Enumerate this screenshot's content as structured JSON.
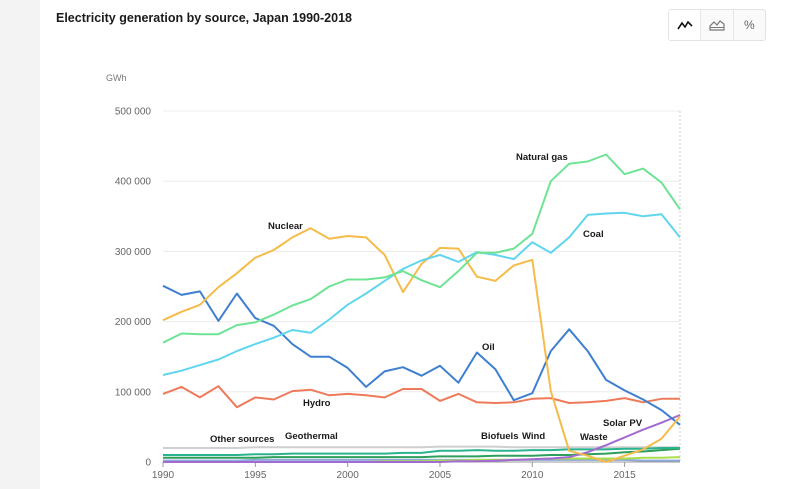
{
  "header": {
    "title": "Electricity generation by source, Japan 1990-2018"
  },
  "view_toggle": [
    {
      "name": "line-chart-icon",
      "glyph": "〰",
      "active": true
    },
    {
      "name": "area-chart-icon",
      "glyph": "⛰",
      "active": false
    },
    {
      "name": "percent-icon",
      "glyph": "%",
      "active": false
    }
  ],
  "chart_data": {
    "type": "line",
    "title": "Electricity generation by source, Japan 1990-2018",
    "ylabel": "GWh",
    "xlim": [
      1990,
      2018
    ],
    "ylim": [
      0,
      500000
    ],
    "x_ticks": [
      1990,
      1995,
      2000,
      2005,
      2010,
      2015
    ],
    "x_tick_labels": [
      "1990",
      "1995",
      "2000",
      "2005",
      "2010",
      "2015"
    ],
    "y_ticks": [
      0,
      100000,
      200000,
      300000,
      400000,
      500000
    ],
    "y_tick_labels": [
      "0",
      "100 000",
      "200 000",
      "300 000",
      "400 000",
      "500 000"
    ],
    "grid": true,
    "legend": "none",
    "x": [
      1990,
      1991,
      1992,
      1993,
      1994,
      1995,
      1996,
      1997,
      1998,
      1999,
      2000,
      2001,
      2002,
      2003,
      2004,
      2005,
      2006,
      2007,
      2008,
      2009,
      2010,
      2011,
      2012,
      2013,
      2014,
      2015,
      2016,
      2017,
      2018
    ],
    "series": [
      {
        "name": "Natural gas",
        "color": "#6fe394",
        "values": [
          170000,
          183000,
          182000,
          182000,
          195000,
          199000,
          210000,
          223000,
          232000,
          250000,
          260000,
          260000,
          263000,
          272000,
          259000,
          249000,
          272000,
          298000,
          298000,
          304000,
          325000,
          400000,
          425000,
          428000,
          438000,
          410000,
          418000,
          398000,
          360000
        ]
      },
      {
        "name": "Coal",
        "color": "#5fd6ee",
        "values": [
          124000,
          130000,
          138000,
          146000,
          158000,
          168000,
          177000,
          188000,
          184000,
          203000,
          224000,
          240000,
          258000,
          275000,
          287000,
          295000,
          285000,
          299000,
          295000,
          289000,
          313000,
          298000,
          320000,
          352000,
          354000,
          355000,
          350000,
          353000,
          320000
        ]
      },
      {
        "name": "Nuclear",
        "color": "#f5bc4b",
        "values": [
          202000,
          214000,
          224000,
          249000,
          269000,
          291000,
          302000,
          320000,
          333000,
          318000,
          322000,
          320000,
          295000,
          242000,
          282000,
          305000,
          304000,
          264000,
          258000,
          280000,
          288000,
          101000,
          16000,
          9000,
          0,
          9000,
          18000,
          33000,
          65000
        ]
      },
      {
        "name": "Oil",
        "color": "#3e7fd0",
        "values": [
          251000,
          238000,
          243000,
          201000,
          240000,
          205000,
          194000,
          168000,
          150000,
          150000,
          134000,
          107000,
          129000,
          135000,
          123000,
          137000,
          113000,
          156000,
          132000,
          88000,
          98000,
          158000,
          189000,
          158000,
          117000,
          102000,
          89000,
          74000,
          53000
        ]
      },
      {
        "name": "Hydro",
        "color": "#ef7a5a",
        "values": [
          97000,
          107000,
          92000,
          108000,
          78000,
          92000,
          89000,
          101000,
          103000,
          95000,
          97000,
          95000,
          92000,
          104000,
          104000,
          87000,
          97000,
          85000,
          84000,
          85000,
          90000,
          91000,
          84000,
          85000,
          87000,
          91000,
          85000,
          90000,
          90000
        ]
      },
      {
        "name": "Solar PV",
        "color": "#a36ad2",
        "values": [
          0,
          0,
          0,
          0,
          0,
          0,
          0,
          0,
          0,
          0,
          0,
          0,
          0,
          0,
          0,
          0,
          1000,
          1000,
          2000,
          3000,
          4000,
          5000,
          7000,
          14000,
          24000,
          35000,
          46000,
          56000,
          67000
        ]
      },
      {
        "name": "Waste",
        "color": "#2bb38f",
        "values": [
          10000,
          10000,
          10000,
          10000,
          10000,
          11000,
          11000,
          12000,
          12000,
          12000,
          12000,
          12000,
          12000,
          13000,
          13000,
          16000,
          16000,
          17000,
          16000,
          16000,
          17000,
          17000,
          18000,
          18000,
          18000,
          19000,
          19000,
          20000,
          20000
        ]
      },
      {
        "name": "Biofuels",
        "color": "#2e9f5b",
        "values": [
          6000,
          6000,
          6000,
          6000,
          6000,
          6000,
          7000,
          7000,
          7000,
          7000,
          7000,
          7000,
          7000,
          7000,
          7000,
          8000,
          8000,
          8000,
          9000,
          9000,
          9000,
          10000,
          10000,
          11000,
          12000,
          14000,
          15000,
          17000,
          19000
        ]
      },
      {
        "name": "Wind",
        "color": "#a9e04a",
        "values": [
          0,
          0,
          0,
          0,
          0,
          0,
          0,
          0,
          0,
          0,
          0,
          0,
          1000,
          1000,
          1000,
          2000,
          2000,
          3000,
          3000,
          3000,
          4000,
          5000,
          5000,
          5000,
          5000,
          5000,
          6000,
          6000,
          7000
        ]
      },
      {
        "name": "Geothermal",
        "color": "#8ca9d8",
        "values": [
          2000,
          2000,
          2000,
          2000,
          2000,
          3000,
          3000,
          3000,
          3000,
          3000,
          3000,
          3000,
          3000,
          3000,
          3000,
          3000,
          3000,
          3000,
          3000,
          3000,
          3000,
          3000,
          3000,
          3000,
          3000,
          3000,
          2000,
          2000,
          2000
        ]
      },
      {
        "name": "Other sources",
        "color": "#cfcfcf",
        "values": [
          20000,
          20000,
          20000,
          20000,
          20000,
          21000,
          21000,
          21000,
          21000,
          21000,
          21000,
          21000,
          21000,
          21000,
          21000,
          22000,
          22000,
          22000,
          22000,
          21000,
          21000,
          21000,
          21000,
          21000,
          21000,
          21000,
          21000,
          21000,
          21000
        ]
      }
    ],
    "annotations": [
      "Natural gas",
      "Coal",
      "Nuclear",
      "Oil",
      "Hydro",
      "Solar PV",
      "Waste",
      "Wind",
      "Biofuels",
      "Geothermal",
      "Other sources"
    ]
  }
}
